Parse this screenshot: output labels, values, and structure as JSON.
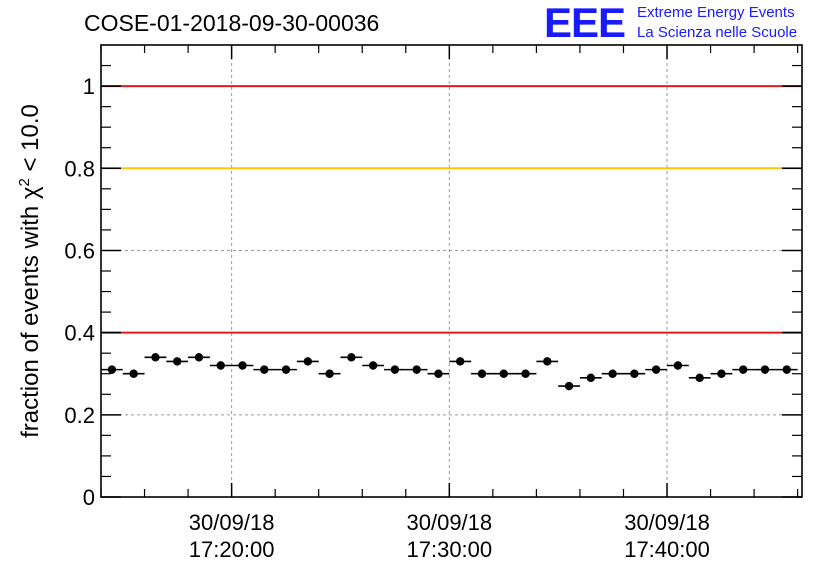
{
  "header": {
    "run_title": "COSE-01-2018-09-30-00036",
    "logo_mark": "EEE",
    "logo_line1": "Extreme Energy Events",
    "logo_line2": "La Scienza nelle Scuole"
  },
  "colors": {
    "red_line": "#e8161b",
    "yellow_line": "#ffc600",
    "logo_blue": "#1a1aff",
    "points": "#000000",
    "grid": "#9a9a9a"
  },
  "chart_data": {
    "type": "scatter",
    "title": "COSE-01-2018-09-30-00036",
    "xlabel": "",
    "ylabel": "fraction of events with χ² < 10.0",
    "ylabel_parts": {
      "before": "fraction of events with ",
      "chi": "χ",
      "sup": "2",
      "after": " < 10.0"
    },
    "x_unit": "minutes after 17:00:00 on 30/09/18",
    "xlim": [
      14.0,
      46.2
    ],
    "ylim": [
      0,
      1.1
    ],
    "grid": true,
    "y_ticks": [
      {
        "value": 0,
        "label": "0"
      },
      {
        "value": 0.2,
        "label": "0.2"
      },
      {
        "value": 0.4,
        "label": "0.4"
      },
      {
        "value": 0.6,
        "label": "0.6"
      },
      {
        "value": 0.8,
        "label": "0.8"
      },
      {
        "value": 1.0,
        "label": "1"
      }
    ],
    "x_ticks": [
      {
        "value": 20,
        "date": "30/09/18",
        "time": "17:20:00"
      },
      {
        "value": 30,
        "date": "30/09/18",
        "time": "17:30:00"
      },
      {
        "value": 40,
        "date": "30/09/18",
        "time": "17:40:00"
      }
    ],
    "x_minor_step": 2,
    "reference_lines": [
      {
        "y": 1.0,
        "color": "#e8161b",
        "name": "red"
      },
      {
        "y": 0.8,
        "color": "#ffc600",
        "name": "yellow"
      },
      {
        "y": 0.4,
        "color": "#e8161b",
        "name": "red"
      }
    ],
    "bin_width": 1.0,
    "x": [
      14.5,
      15.5,
      16.5,
      17.5,
      18.5,
      19.5,
      20.5,
      21.5,
      22.5,
      23.5,
      24.5,
      25.5,
      26.5,
      27.5,
      28.5,
      29.5,
      30.5,
      31.5,
      32.5,
      33.5,
      34.5,
      35.5,
      36.5,
      37.5,
      38.5,
      39.5,
      40.5,
      41.5,
      42.5,
      43.5,
      44.5,
      45.5
    ],
    "y": [
      0.31,
      0.3,
      0.34,
      0.33,
      0.34,
      0.32,
      0.32,
      0.31,
      0.31,
      0.33,
      0.3,
      0.34,
      0.32,
      0.31,
      0.31,
      0.3,
      0.33,
      0.3,
      0.3,
      0.3,
      0.33,
      0.27,
      0.29,
      0.3,
      0.3,
      0.31,
      0.32,
      0.29,
      0.3,
      0.31,
      0.31,
      0.31
    ],
    "y_err": 0.01
  }
}
